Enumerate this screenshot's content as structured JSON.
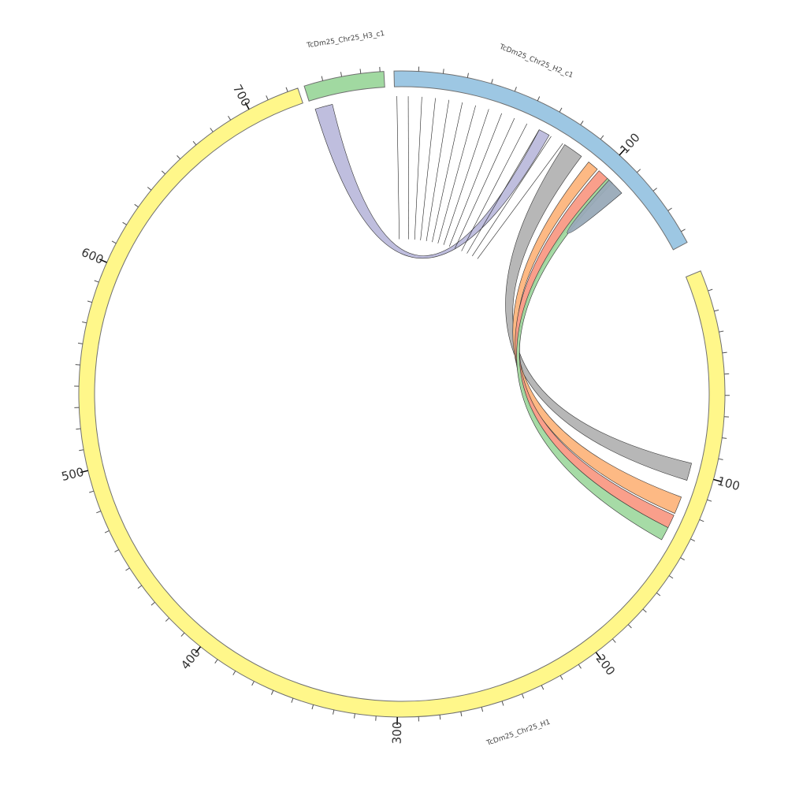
{
  "chart_data": {
    "type": "chord",
    "title": "",
    "segments": [
      {
        "name": "TcDm25_Chr25_H1",
        "start": 0,
        "end": 725,
        "color": "#FFF78A",
        "major_ticks": [
          100,
          200,
          300,
          400,
          500,
          600,
          700
        ]
      },
      {
        "name": "TcDm25_Chr25_H2_c1",
        "start": 0,
        "end": 145,
        "color": "#9DC7E3",
        "major_ticks": [
          100
        ]
      },
      {
        "name": "TcDm25_Chr25_H3_c1",
        "start": 0,
        "end": 42,
        "color": "#A1D9A1",
        "major_ticks": []
      }
    ],
    "links": [
      {
        "source": [
          "TcDm25_Chr25_H2_c1",
          79,
          88
        ],
        "target": [
          "TcDm25_Chr25_H1",
          95,
          104
        ],
        "color": "#B3B3B3"
      },
      {
        "source": [
          "TcDm25_Chr25_H2_c1",
          92,
          97
        ],
        "target": [
          "TcDm25_Chr25_H1",
          113,
          122
        ],
        "color": "#FDB57D"
      },
      {
        "source": [
          "TcDm25_Chr25_H2_c1",
          98,
          104
        ],
        "target": [
          "TcDm25_Chr25_H1",
          123,
          130
        ],
        "color": "#F99A85"
      },
      {
        "source": [
          "TcDm25_Chr25_H2_c1",
          103,
          106
        ],
        "target": [
          "TcDm25_Chr25_H1",
          130,
          137
        ],
        "color": "#A1D9A1"
      },
      {
        "source": [
          "TcDm25_Chr25_H2_c1",
          104,
          112
        ],
        "target": [
          "TcDm25_Chr25_H2_c1",
          104,
          112
        ],
        "color": "#99AAB8"
      },
      {
        "source": [
          "TcDm25_Chr25_H3_c1",
          2,
          12
        ],
        "target": [
          "TcDm25_Chr25_H2_c1",
          66,
          71
        ],
        "color": "#BCBBDC"
      }
    ],
    "thin_links": [
      {
        "source": [
          "TcDm25_Chr25_H2_c1",
          1
        ],
        "target": [
          "TcDm25_Chr25_H2_c1",
          1
        ]
      },
      {
        "source": [
          "TcDm25_Chr25_H2_c1",
          6
        ],
        "target": [
          "TcDm25_Chr25_H2_c1",
          9
        ]
      },
      {
        "source": [
          "TcDm25_Chr25_H2_c1",
          12
        ],
        "target": [
          "TcDm25_Chr25_H2_c1",
          14
        ]
      },
      {
        "source": [
          "TcDm25_Chr25_H2_c1",
          18
        ],
        "target": [
          "TcDm25_Chr25_H2_c1",
          19
        ]
      },
      {
        "source": [
          "TcDm25_Chr25_H2_c1",
          24
        ],
        "target": [
          "TcDm25_Chr25_H2_c1",
          24
        ]
      },
      {
        "source": [
          "TcDm25_Chr25_H2_c1",
          30
        ],
        "target": [
          "TcDm25_Chr25_H2_c1",
          29
        ]
      },
      {
        "source": [
          "TcDm25_Chr25_H2_c1",
          36
        ],
        "target": [
          "TcDm25_Chr25_H2_c1",
          34
        ]
      },
      {
        "source": [
          "TcDm25_Chr25_H2_c1",
          42
        ],
        "target": [
          "TcDm25_Chr25_H2_c1",
          39
        ]
      },
      {
        "source": [
          "TcDm25_Chr25_H2_c1",
          48
        ],
        "target": [
          "TcDm25_Chr25_H2_c1",
          44
        ]
      },
      {
        "source": [
          "TcDm25_Chr25_H2_c1",
          54
        ],
        "target": [
          "TcDm25_Chr25_H2_c1",
          49
        ]
      },
      {
        "source": [
          "TcDm25_Chr25_H2_c1",
          60
        ],
        "target": [
          "TcDm25_Chr25_H2_c1",
          55
        ]
      },
      {
        "source": [
          "TcDm25_Chr25_H2_c1",
          66
        ],
        "target": [
          "TcDm25_Chr25_H2_c1",
          60
        ]
      },
      {
        "source": [
          "TcDm25_Chr25_H2_c1",
          72
        ],
        "target": [
          "TcDm25_Chr25_H2_c1",
          65
        ]
      },
      {
        "source": [
          "TcDm25_Chr25_H2_c1",
          78
        ],
        "target": [
          "TcDm25_Chr25_H2_c1",
          70
        ]
      }
    ]
  }
}
